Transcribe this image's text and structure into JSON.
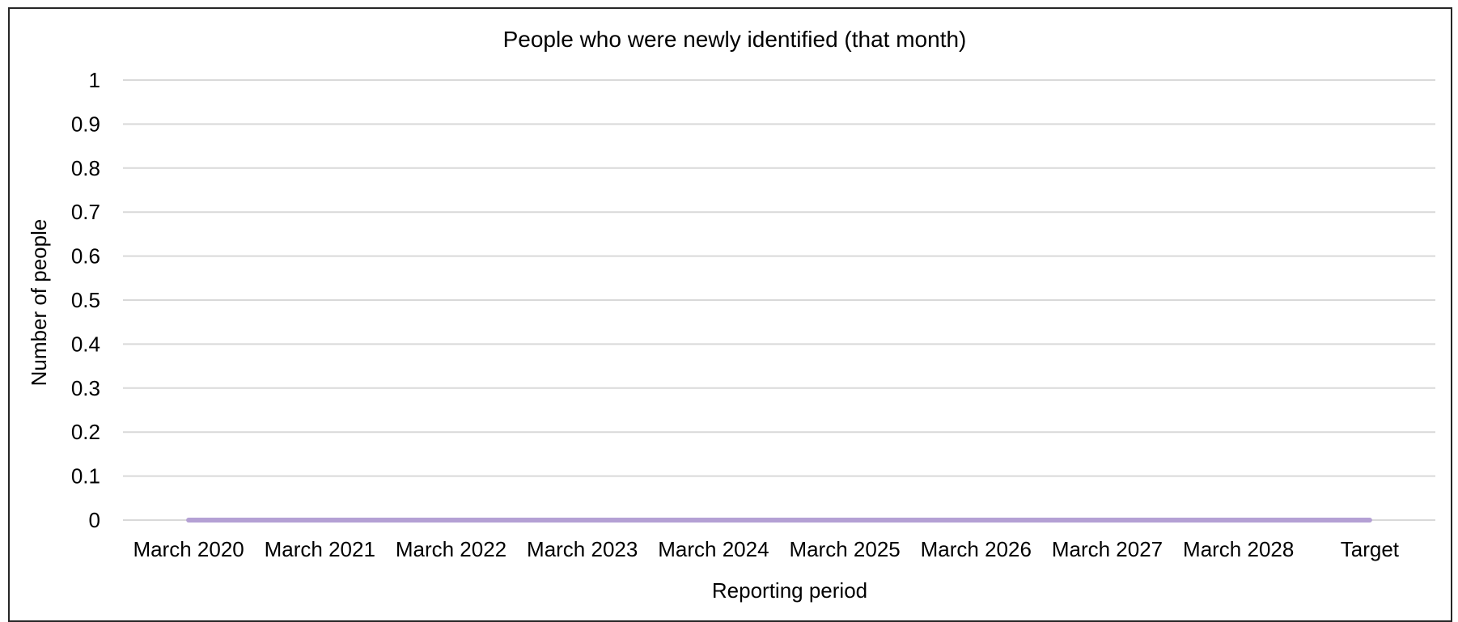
{
  "chart_data": {
    "type": "line",
    "title": "People who were newly identified (that month)",
    "xlabel": "Reporting period",
    "ylabel": "Number of people",
    "categories": [
      "March 2020",
      "March 2021",
      "March 2022",
      "March 2023",
      "March 2024",
      "March 2025",
      "March 2026",
      "March 2027",
      "March 2028",
      "Target"
    ],
    "series": [
      {
        "values": [
          0,
          0,
          0,
          0,
          0,
          0,
          0,
          0,
          0,
          0
        ],
        "color": "#b4a0d4"
      }
    ],
    "ylim": [
      0,
      1
    ],
    "yticks": [
      "0",
      "0.1",
      "0.2",
      "0.3",
      "0.4",
      "0.5",
      "0.6",
      "0.7",
      "0.8",
      "0.9",
      "1"
    ],
    "grid": true,
    "legend": "none"
  }
}
